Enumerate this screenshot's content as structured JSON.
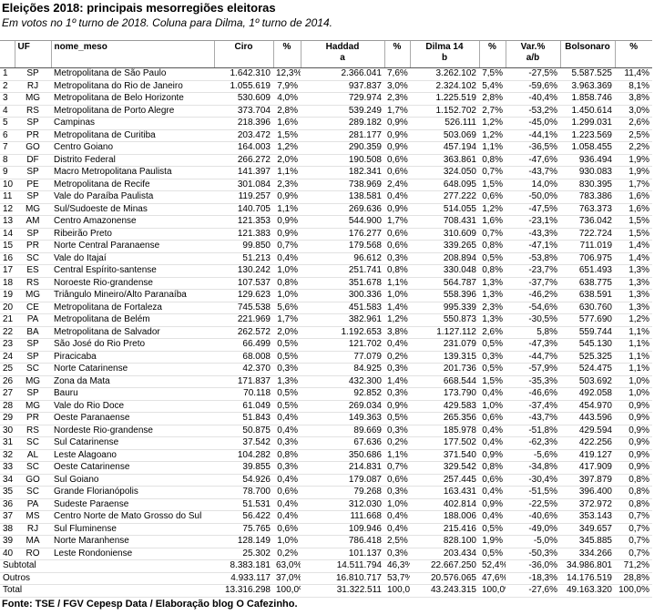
{
  "header": {
    "title": "Eleições 2018: principais mesorregiões eleitoras",
    "subtitle": "Em votos no 1º turno de 2018. Coluna para Dilma, 1º turno de 2014."
  },
  "table": {
    "columns": [
      [
        "UF"
      ],
      [
        "nome_meso"
      ],
      [
        "Ciro"
      ],
      [
        "%"
      ],
      [
        "Haddad",
        "a"
      ],
      [
        "%"
      ],
      [
        "Dilma 14",
        "b"
      ],
      [
        "%"
      ],
      [
        "Var.%",
        "a/b"
      ],
      [
        "Bolsonaro"
      ],
      [
        "%"
      ]
    ],
    "rows": [
      [
        "1",
        "SP",
        "Metropolitana de São Paulo",
        "1.642.310",
        "12,3%",
        "2.366.041",
        "7,6%",
        "3.262.102",
        "7,5%",
        "-27,5%",
        "5.587.525",
        "11,4%"
      ],
      [
        "2",
        "RJ",
        "Metropolitana do Rio de Janeiro",
        "1.055.619",
        "7,9%",
        "937.837",
        "3,0%",
        "2.324.102",
        "5,4%",
        "-59,6%",
        "3.963.369",
        "8,1%"
      ],
      [
        "3",
        "MG",
        "Metropolitana de Belo Horizonte",
        "530.609",
        "4,0%",
        "729.974",
        "2,3%",
        "1.225.519",
        "2,8%",
        "-40,4%",
        "1.858.746",
        "3,8%"
      ],
      [
        "4",
        "RS",
        "Metropolitana de Porto Alegre",
        "373.704",
        "2,8%",
        "539.249",
        "1,7%",
        "1.152.702",
        "2,7%",
        "-53,2%",
        "1.450.614",
        "3,0%"
      ],
      [
        "5",
        "SP",
        "Campinas",
        "218.396",
        "1,6%",
        "289.182",
        "0,9%",
        "526.111",
        "1,2%",
        "-45,0%",
        "1.299.031",
        "2,6%"
      ],
      [
        "6",
        "PR",
        "Metropolitana de Curitiba",
        "203.472",
        "1,5%",
        "281.177",
        "0,9%",
        "503.069",
        "1,2%",
        "-44,1%",
        "1.223.569",
        "2,5%"
      ],
      [
        "7",
        "GO",
        "Centro Goiano",
        "164.003",
        "1,2%",
        "290.359",
        "0,9%",
        "457.194",
        "1,1%",
        "-36,5%",
        "1.058.455",
        "2,2%"
      ],
      [
        "8",
        "DF",
        "Distrito Federal",
        "266.272",
        "2,0%",
        "190.508",
        "0,6%",
        "363.861",
        "0,8%",
        "-47,6%",
        "936.494",
        "1,9%"
      ],
      [
        "9",
        "SP",
        "Macro Metropolitana Paulista",
        "141.397",
        "1,1%",
        "182.341",
        "0,6%",
        "324.050",
        "0,7%",
        "-43,7%",
        "930.083",
        "1,9%"
      ],
      [
        "10",
        "PE",
        "Metropolitana de Recife",
        "301.084",
        "2,3%",
        "738.969",
        "2,4%",
        "648.095",
        "1,5%",
        "14,0%",
        "830.395",
        "1,7%"
      ],
      [
        "11",
        "SP",
        "Vale do Paraíba Paulista",
        "119.257",
        "0,9%",
        "138.581",
        "0,4%",
        "277.222",
        "0,6%",
        "-50,0%",
        "783.386",
        "1,6%"
      ],
      [
        "12",
        "MG",
        "Sul/Sudoeste de Minas",
        "140.705",
        "1,1%",
        "269.636",
        "0,9%",
        "514.055",
        "1,2%",
        "-47,5%",
        "763.373",
        "1,6%"
      ],
      [
        "13",
        "AM",
        "Centro Amazonense",
        "121.353",
        "0,9%",
        "544.900",
        "1,7%",
        "708.431",
        "1,6%",
        "-23,1%",
        "736.042",
        "1,5%"
      ],
      [
        "14",
        "SP",
        "Ribeirão Preto",
        "121.383",
        "0,9%",
        "176.277",
        "0,6%",
        "310.609",
        "0,7%",
        "-43,3%",
        "722.724",
        "1,5%"
      ],
      [
        "15",
        "PR",
        "Norte Central Paranaense",
        "99.850",
        "0,7%",
        "179.568",
        "0,6%",
        "339.265",
        "0,8%",
        "-47,1%",
        "711.019",
        "1,4%"
      ],
      [
        "16",
        "SC",
        "Vale do Itajaí",
        "51.213",
        "0,4%",
        "96.612",
        "0,3%",
        "208.894",
        "0,5%",
        "-53,8%",
        "706.975",
        "1,4%"
      ],
      [
        "17",
        "ES",
        "Central Espírito-santense",
        "130.242",
        "1,0%",
        "251.741",
        "0,8%",
        "330.048",
        "0,8%",
        "-23,7%",
        "651.493",
        "1,3%"
      ],
      [
        "18",
        "RS",
        "Noroeste Rio-grandense",
        "107.537",
        "0,8%",
        "351.678",
        "1,1%",
        "564.787",
        "1,3%",
        "-37,7%",
        "638.775",
        "1,3%"
      ],
      [
        "19",
        "MG",
        "Triângulo Mineiro/Alto Paranaíba",
        "129.623",
        "1,0%",
        "300.336",
        "1,0%",
        "558.396",
        "1,3%",
        "-46,2%",
        "638.591",
        "1,3%"
      ],
      [
        "20",
        "CE",
        "Metropolitana de Fortaleza",
        "745.538",
        "5,6%",
        "451.583",
        "1,4%",
        "995.339",
        "2,3%",
        "-54,6%",
        "630.760",
        "1,3%"
      ],
      [
        "21",
        "PA",
        "Metropolitana de Belém",
        "221.969",
        "1,7%",
        "382.961",
        "1,2%",
        "550.873",
        "1,3%",
        "-30,5%",
        "577.690",
        "1,2%"
      ],
      [
        "22",
        "BA",
        "Metropolitana de Salvador",
        "262.572",
        "2,0%",
        "1.192.653",
        "3,8%",
        "1.127.112",
        "2,6%",
        "5,8%",
        "559.744",
        "1,1%"
      ],
      [
        "23",
        "SP",
        "São José do Rio Preto",
        "66.499",
        "0,5%",
        "121.702",
        "0,4%",
        "231.079",
        "0,5%",
        "-47,3%",
        "545.130",
        "1,1%"
      ],
      [
        "24",
        "SP",
        "Piracicaba",
        "68.008",
        "0,5%",
        "77.079",
        "0,2%",
        "139.315",
        "0,3%",
        "-44,7%",
        "525.325",
        "1,1%"
      ],
      [
        "25",
        "SC",
        "Norte Catarinense",
        "42.370",
        "0,3%",
        "84.925",
        "0,3%",
        "201.736",
        "0,5%",
        "-57,9%",
        "524.475",
        "1,1%"
      ],
      [
        "26",
        "MG",
        "Zona da Mata",
        "171.837",
        "1,3%",
        "432.300",
        "1,4%",
        "668.544",
        "1,5%",
        "-35,3%",
        "503.692",
        "1,0%"
      ],
      [
        "27",
        "SP",
        "Bauru",
        "70.118",
        "0,5%",
        "92.852",
        "0,3%",
        "173.790",
        "0,4%",
        "-46,6%",
        "492.058",
        "1,0%"
      ],
      [
        "28",
        "MG",
        "Vale do Rio Doce",
        "61.049",
        "0,5%",
        "269.034",
        "0,9%",
        "429.583",
        "1,0%",
        "-37,4%",
        "454.970",
        "0,9%"
      ],
      [
        "29",
        "PR",
        "Oeste Paranaense",
        "51.843",
        "0,4%",
        "149.363",
        "0,5%",
        "265.356",
        "0,6%",
        "-43,7%",
        "443.596",
        "0,9%"
      ],
      [
        "30",
        "RS",
        "Nordeste Rio-grandense",
        "50.875",
        "0,4%",
        "89.669",
        "0,3%",
        "185.978",
        "0,4%",
        "-51,8%",
        "429.594",
        "0,9%"
      ],
      [
        "31",
        "SC",
        "Sul Catarinense",
        "37.542",
        "0,3%",
        "67.636",
        "0,2%",
        "177.502",
        "0,4%",
        "-62,3%",
        "422.256",
        "0,9%"
      ],
      [
        "32",
        "AL",
        "Leste Alagoano",
        "104.282",
        "0,8%",
        "350.686",
        "1,1%",
        "371.540",
        "0,9%",
        "-5,6%",
        "419.127",
        "0,9%"
      ],
      [
        "33",
        "SC",
        "Oeste Catarinense",
        "39.855",
        "0,3%",
        "214.831",
        "0,7%",
        "329.542",
        "0,8%",
        "-34,8%",
        "417.909",
        "0,9%"
      ],
      [
        "34",
        "GO",
        "Sul Goiano",
        "54.926",
        "0,4%",
        "179.087",
        "0,6%",
        "257.445",
        "0,6%",
        "-30,4%",
        "397.879",
        "0,8%"
      ],
      [
        "35",
        "SC",
        "Grande Florianópolis",
        "78.700",
        "0,6%",
        "79.268",
        "0,3%",
        "163.431",
        "0,4%",
        "-51,5%",
        "396.400",
        "0,8%"
      ],
      [
        "36",
        "PA",
        "Sudeste Paraense",
        "51.531",
        "0,4%",
        "312.030",
        "1,0%",
        "402.814",
        "0,9%",
        "-22,5%",
        "372.972",
        "0,8%"
      ],
      [
        "37",
        "MS",
        "Centro Norte de Mato Grosso do Sul",
        "56.422",
        "0,4%",
        "111.668",
        "0,4%",
        "188.006",
        "0,4%",
        "-40,6%",
        "353.143",
        "0,7%"
      ],
      [
        "38",
        "RJ",
        "Sul Fluminense",
        "75.765",
        "0,6%",
        "109.946",
        "0,4%",
        "215.416",
        "0,5%",
        "-49,0%",
        "349.657",
        "0,7%"
      ],
      [
        "39",
        "MA",
        "Norte Maranhense",
        "128.149",
        "1,0%",
        "786.418",
        "2,5%",
        "828.100",
        "1,9%",
        "-5,0%",
        "345.885",
        "0,7%"
      ],
      [
        "40",
        "RO",
        "Leste Rondoniense",
        "25.302",
        "0,2%",
        "101.137",
        "0,3%",
        "203.434",
        "0,5%",
        "-50,3%",
        "334.266",
        "0,7%"
      ]
    ],
    "summary_rows": [
      {
        "label": "Subtotal",
        "cells": [
          "8.383.181",
          "63,0%",
          "14.511.794",
          "46,3%",
          "22.667.250",
          "52,4%",
          "-36,0%",
          "34.986.801",
          "71,2%"
        ]
      },
      {
        "label": "Outros",
        "cells": [
          "4.933.117",
          "37,0%",
          "16.810.717",
          "53,7%",
          "20.576.065",
          "47,6%",
          "-18,3%",
          "14.176.519",
          "28,8%"
        ]
      },
      {
        "label": "Total",
        "cells": [
          "13.316.298",
          "100,0%",
          "31.322.511",
          "100,0%",
          "43.243.315",
          "100,0%",
          "-27,6%",
          "49.163.320",
          "100,0%"
        ]
      }
    ]
  },
  "footer": "Fonte: TSE / FGV Cepesp Data / Elaboração blog O Cafezinho."
}
